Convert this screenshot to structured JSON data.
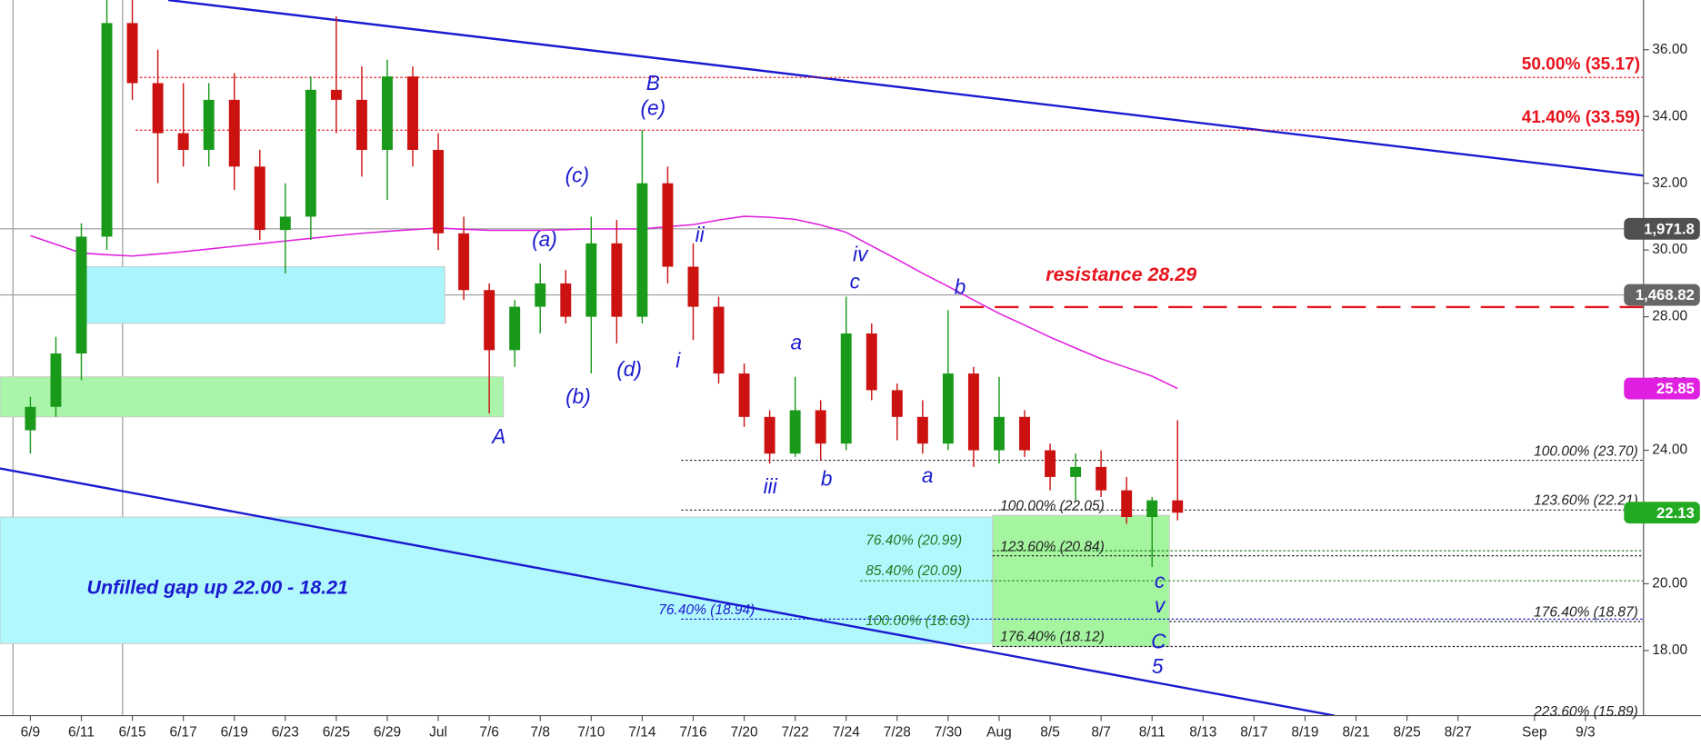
{
  "chart_data": {
    "type": "candlestick",
    "categories": [
      "6/9",
      null,
      "6/11",
      null,
      "6/15",
      null,
      "6/17",
      null,
      "6/19",
      null,
      "6/23",
      null,
      "6/25",
      null,
      "6/29",
      null,
      "Jul",
      null,
      "7/6",
      null,
      "7/8",
      null,
      "7/10",
      null,
      "7/14",
      null,
      "7/16",
      null,
      "7/20",
      null,
      "7/22",
      null,
      "7/24",
      null,
      "7/28",
      null,
      "7/30",
      null,
      "Aug",
      null,
      "8/5",
      null,
      "8/7",
      null,
      "8/11",
      null,
      "8/13",
      null,
      "8/17",
      null,
      "8/19",
      null,
      "8/21",
      null,
      "8/25",
      null,
      "8/27",
      null,
      null,
      "Sep",
      null,
      "9/3",
      null
    ],
    "open": [
      24.6,
      25.3,
      26.9,
      30.4,
      36.8,
      35.0,
      33.5,
      33.0,
      34.5,
      32.5,
      30.6,
      31.0,
      34.8,
      34.5,
      33.0,
      35.2,
      33.0,
      30.5,
      28.8,
      27.0,
      28.3,
      29.0,
      28.0,
      30.2,
      28.0,
      32.0,
      29.5,
      28.3,
      26.3,
      25.0,
      23.9,
      25.2,
      24.2,
      27.5,
      25.8,
      25.0,
      24.2,
      26.3,
      24.0,
      25.0,
      24.0,
      23.2,
      23.5,
      22.8,
      22.0,
      22.5,
      null,
      null,
      null,
      null,
      null,
      null,
      null,
      null,
      null,
      null,
      null,
      null,
      null,
      null,
      null,
      null,
      null
    ],
    "high": [
      25.6,
      27.4,
      30.8,
      37.5,
      37.5,
      36.0,
      35.0,
      35.0,
      35.3,
      33.0,
      32.0,
      35.2,
      37.0,
      35.5,
      35.7,
      35.5,
      33.5,
      31.0,
      29.0,
      28.5,
      29.6,
      29.4,
      31.0,
      30.9,
      33.6,
      32.5,
      30.2,
      28.6,
      26.6,
      25.2,
      26.2,
      25.5,
      28.6,
      27.8,
      26.0,
      25.5,
      28.2,
      26.5,
      26.2,
      25.2,
      24.2,
      23.9,
      24.0,
      23.2,
      22.6,
      24.9,
      null,
      null,
      null,
      null,
      null,
      null,
      null,
      null,
      null,
      null,
      null,
      null,
      null,
      null,
      null,
      null,
      null
    ],
    "low": [
      23.9,
      25.0,
      26.1,
      30.0,
      34.5,
      32.0,
      32.5,
      32.5,
      31.8,
      30.3,
      29.3,
      30.3,
      33.5,
      32.2,
      31.5,
      32.5,
      30.0,
      28.5,
      25.1,
      26.5,
      27.5,
      27.8,
      26.3,
      27.2,
      27.8,
      29.0,
      27.3,
      26.0,
      24.7,
      23.6,
      23.8,
      23.7,
      24.0,
      25.5,
      24.3,
      23.9,
      24.0,
      23.5,
      23.6,
      23.8,
      22.8,
      22.5,
      22.6,
      21.8,
      20.5,
      21.9,
      null,
      null,
      null,
      null,
      null,
      null,
      null,
      null,
      null,
      null,
      null,
      null,
      null,
      null,
      null,
      null,
      null
    ],
    "close": [
      25.3,
      26.9,
      30.4,
      36.8,
      35.0,
      33.5,
      33.0,
      34.5,
      32.5,
      30.6,
      31.0,
      34.8,
      34.5,
      33.0,
      35.2,
      33.0,
      30.5,
      28.8,
      27.0,
      28.3,
      29.0,
      28.0,
      30.2,
      28.0,
      32.0,
      29.5,
      28.3,
      26.3,
      25.0,
      23.9,
      25.2,
      24.2,
      27.5,
      25.8,
      25.0,
      24.2,
      26.3,
      24.0,
      25.0,
      24.0,
      23.2,
      23.5,
      22.8,
      22.0,
      22.5,
      22.13,
      null,
      null,
      null,
      null,
      null,
      null,
      null,
      null,
      null,
      null,
      null,
      null,
      null,
      null,
      null,
      null,
      null
    ],
    "up_color": "#1a9a1a",
    "down_color": "#cc1111",
    "ma": {
      "color": "#e020e0",
      "values": [
        30.43,
        30.17,
        29.91,
        29.86,
        29.82,
        29.88,
        29.95,
        30.03,
        30.11,
        30.19,
        30.27,
        30.35,
        30.43,
        30.5,
        30.56,
        30.61,
        30.66,
        30.62,
        30.59,
        30.59,
        30.59,
        30.61,
        30.63,
        30.63,
        30.63,
        30.7,
        30.76,
        30.9,
        31.01,
        30.98,
        30.92,
        30.75,
        30.53,
        30.12,
        29.72,
        29.3,
        28.91,
        28.5,
        28.1,
        27.75,
        27.39,
        27.06,
        26.74,
        26.48,
        26.22,
        25.85,
        null,
        null,
        null,
        null,
        null,
        null,
        null,
        null,
        null,
        null,
        null,
        null,
        null,
        null,
        null,
        null,
        null
      ]
    },
    "ylim": [
      16.05,
      37.49
    ],
    "yticks": [
      {
        "value": 18,
        "label": "18.00"
      },
      {
        "value": 20,
        "label": "20.00"
      },
      {
        "value": 22,
        "label": "22.00"
      },
      {
        "value": 24,
        "label": "24.00"
      },
      {
        "value": 26,
        "label": "26.00"
      },
      {
        "value": 28,
        "label": "28.00"
      },
      {
        "value": 30,
        "label": "30.00"
      },
      {
        "value": 32,
        "label": "32.00"
      },
      {
        "value": 34,
        "label": "34.00"
      },
      {
        "value": 36,
        "label": "36.00"
      }
    ],
    "levels": [
      {
        "label": "50.00% (35.17)",
        "value": 35.17,
        "color": "#e8141e"
      },
      {
        "label": "41.40% (33.59)",
        "value": 33.59,
        "color": "#e8141e"
      },
      {
        "label": "100.00% (23.70)",
        "value": 23.7,
        "color": "#222222"
      },
      {
        "label": "123.60% (22.21)",
        "value": 22.21,
        "color": "#222222"
      },
      {
        "label": "100.00% (22.05)",
        "value": 22.05,
        "color": "#222222"
      },
      {
        "label": "76.40% (20.99)",
        "value": 20.99,
        "color": "#1f7a1f"
      },
      {
        "label": "123.60% (20.84)",
        "value": 20.84,
        "color": "#222222"
      },
      {
        "label": "85.40% (20.09)",
        "value": 20.09,
        "color": "#1f7a1f"
      },
      {
        "label": "76.40% (18.94)",
        "value": 18.94,
        "color": "#1a1ad0"
      },
      {
        "label": "100.00% (18.63)",
        "value": 18.63,
        "color": "#1f7a1f"
      },
      {
        "label": "176.40% (18.12)",
        "value": 18.12,
        "color": "#222222"
      },
      {
        "label": "176.40% (18.87)",
        "value": 18.87,
        "color": "#222222"
      },
      {
        "label": "223.60% (15.89)",
        "value": 15.89,
        "color": "#222222"
      }
    ],
    "resistance": {
      "label": "resistance 28.29",
      "value": 28.29,
      "color": "#e8141e"
    },
    "zones": [
      {
        "low": 27.8,
        "high": 29.5,
        "color": "#aaf5fb"
      },
      {
        "low": 25.0,
        "high": 26.2,
        "color": "#aaf5aa"
      },
      {
        "low": 18.21,
        "high": 22.0,
        "color": "#b0f8fc",
        "label": "Unfilled gap up 22.00 - 18.21"
      },
      {
        "low": 18.12,
        "high": 22.05,
        "color": "#a5f5a0"
      }
    ],
    "annotations": [
      "B",
      "(e)",
      "(c)",
      "(a)",
      "(b)",
      "(d)",
      "A",
      "ii",
      "i",
      "iv",
      "c",
      "b",
      "a",
      "iii",
      "b",
      "a",
      "c",
      "v",
      "C",
      "5"
    ],
    "price_tags": [
      "1,971.8",
      "1,468.82"
    ]
  }
}
